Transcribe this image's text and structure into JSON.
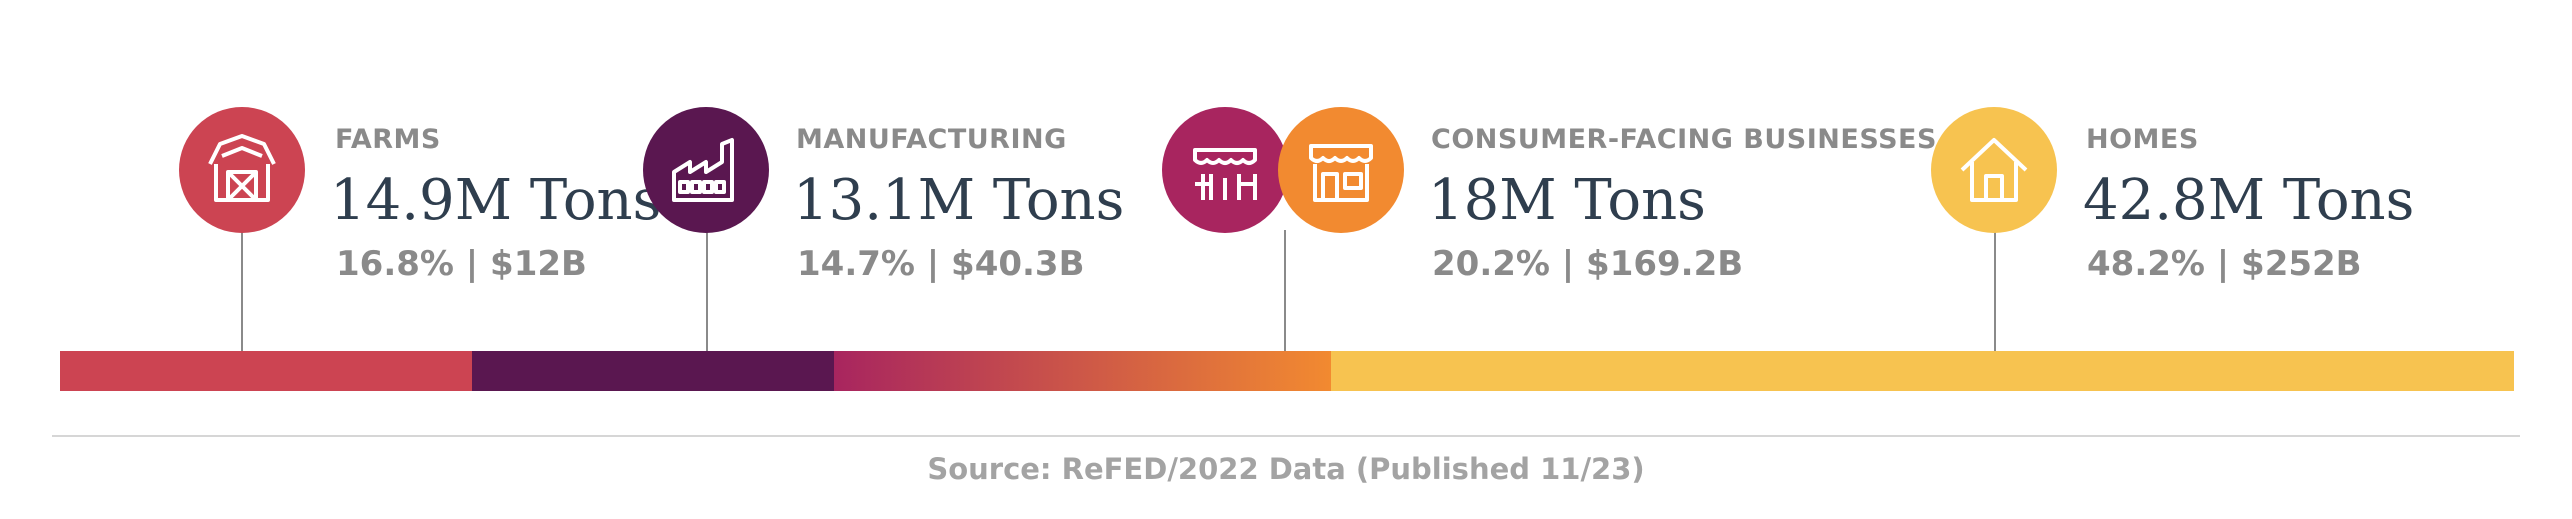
{
  "chart_data": {
    "type": "bar",
    "orientation": "horizontal-stacked",
    "categories": [
      "FARMS",
      "MANUFACTURING",
      "CONSUMER-FACING BUSINESSES",
      "HOMES"
    ],
    "values": [
      14.9,
      13.1,
      18,
      42.8
    ],
    "unit": "M Tons",
    "percent": [
      16.8,
      14.7,
      20.2,
      48.2
    ],
    "dollars_billion": [
      12,
      40.3,
      169.2,
      252
    ],
    "series": [
      {
        "name": "FARMS",
        "value": 14.9,
        "tons_label": "14.9M Tons",
        "stats_label": "16.8% | $12B",
        "color": "#CC4452",
        "icon": "barn-icon"
      },
      {
        "name": "MANUFACTURING",
        "value": 13.1,
        "tons_label": "13.1M Tons",
        "stats_label": "14.7% | $40.3B",
        "color": "#5A1750",
        "icon": "factory-icon"
      },
      {
        "name": "CONSUMER-FACING BUSINESSES",
        "value": 18,
        "tons_label": "18M Tons",
        "stats_label": "20.2% | $169.2B",
        "color": "#A8255F",
        "color_end": "#F28A30",
        "icon": "storefront-icon"
      },
      {
        "name": "HOMES",
        "value": 42.8,
        "tons_label": "42.8M Tons",
        "stats_label": "48.2% | $252B",
        "color": "#F7C350",
        "icon": "house-icon"
      }
    ],
    "source": "Source: ReFED/2022 Data (Published 11/23)",
    "legend": "none",
    "grid": false
  }
}
